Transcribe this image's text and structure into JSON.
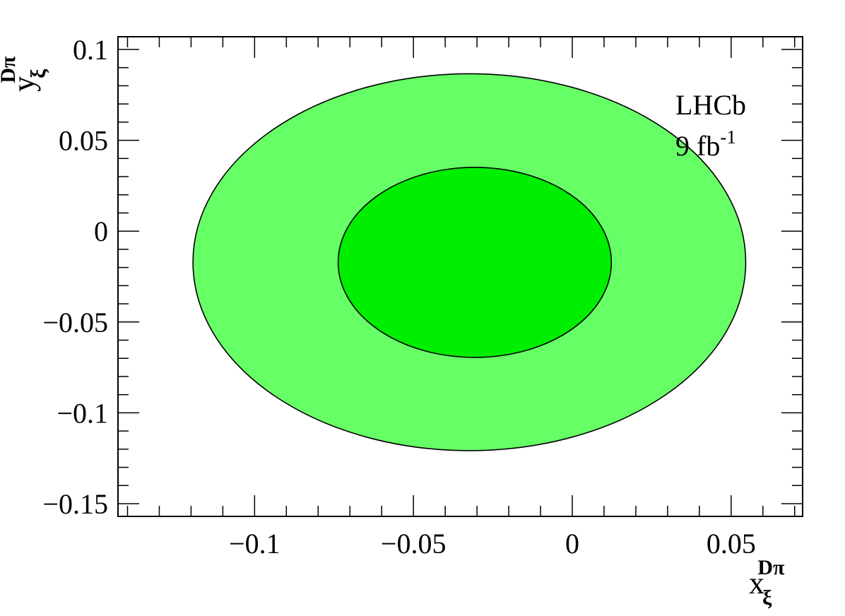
{
  "chart_data": {
    "type": "contour",
    "title": "",
    "xlabel": {
      "main": "x",
      "subscript": "ξ",
      "superscript": "Dπ"
    },
    "ylabel": {
      "main": "y",
      "subscript": "ξ",
      "superscript": "Dπ"
    },
    "xlim": [
      -0.143,
      0.0725
    ],
    "ylim": [
      -0.157,
      0.107
    ],
    "x_ticks": [
      {
        "value": -0.1,
        "label": "−0.1"
      },
      {
        "value": -0.05,
        "label": "−0.05"
      },
      {
        "value": 0,
        "label": "0"
      },
      {
        "value": 0.05,
        "label": "0.05"
      }
    ],
    "y_ticks": [
      {
        "value": 0.1,
        "label": "0.1"
      },
      {
        "value": 0.05,
        "label": "0.05"
      },
      {
        "value": 0,
        "label": "0"
      },
      {
        "value": -0.05,
        "label": "−0.05"
      },
      {
        "value": -0.1,
        "label": "−0.1"
      },
      {
        "value": -0.15,
        "label": "−0.15"
      }
    ],
    "x_minor_step": 0.01,
    "y_minor_step": 0.01,
    "grid": false,
    "regions": [
      {
        "level": "outer",
        "color": "#66ff66",
        "center": {
          "x": -0.0324,
          "y": -0.0171
        },
        "x_range": [
          -0.1194,
          0.0546
        ],
        "y_range": [
          -0.1208,
          0.0866
        ]
      },
      {
        "level": "inner",
        "color": "#00ee00",
        "center": {
          "x": -0.0307,
          "y": -0.0172
        },
        "x_range": [
          -0.0737,
          0.0123
        ],
        "y_range": [
          -0.0695,
          0.0351
        ]
      }
    ],
    "annotations": [
      {
        "id": "experiment",
        "text": "LHCb"
      },
      {
        "id": "luminosity",
        "text": "9 fb",
        "superscript": "-1"
      }
    ]
  }
}
